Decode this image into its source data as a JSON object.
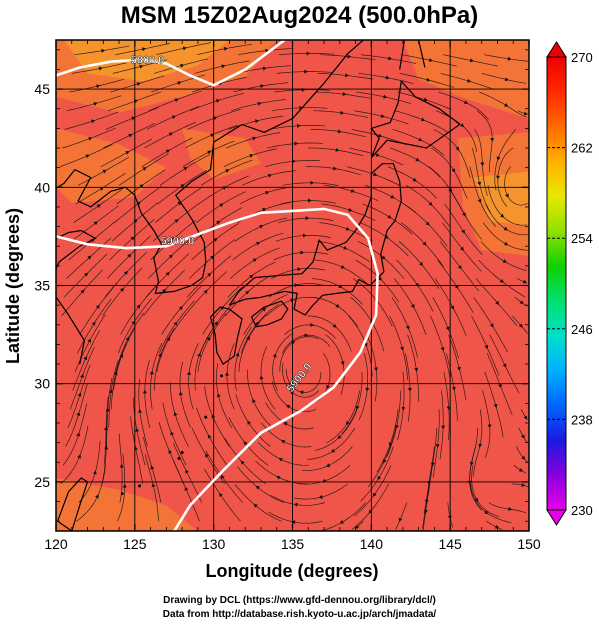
{
  "title": "MSM 15Z02Aug2024 (500.0hPa)",
  "x_axis": {
    "label": "Longitude (degrees)",
    "range": [
      120,
      150
    ],
    "ticks": [
      "120",
      "125",
      "130",
      "135",
      "140",
      "145",
      "150"
    ]
  },
  "y_axis": {
    "label": "Latitude  (degrees)",
    "range": [
      22.5,
      47.5
    ],
    "ticks": [
      "25",
      "30",
      "35",
      "40",
      "45"
    ]
  },
  "colorbar": {
    "ticks": [
      "270",
      "262",
      "254",
      "246",
      "238",
      "230"
    ],
    "min": 230,
    "max": 270,
    "colors": [
      "#e800e8",
      "#8800dd",
      "#1a1ae0",
      "#0066ff",
      "#00b0ff",
      "#00e0c8",
      "#00e070",
      "#10d000",
      "#90e000",
      "#e8e800",
      "#ffb000",
      "#ff6a00",
      "#ff2a00",
      "#ee0000"
    ]
  },
  "contours": [
    {
      "label": "5800.0",
      "label_lon": 125.8,
      "label_lat": 46.3
    },
    {
      "label": "5900.0",
      "label_lon": 127.7,
      "label_lat": 37.1
    },
    {
      "label": "5900.0",
      "label_lon": 135.6,
      "label_lat": 30.2
    }
  ],
  "field_colors": {
    "main": "#f0554a",
    "warm": "#f47a35",
    "hot": "#f59a2c",
    "streamline": "#111111",
    "coast": "#000000",
    "contour": "#ffffff"
  },
  "credits": {
    "line1": "Drawing by DCL (https://www.gfd-dennou.org/library/dcl/)",
    "line2": "Data from http://database.rish.kyoto-u.ac.jp/arch/jmadata/"
  }
}
